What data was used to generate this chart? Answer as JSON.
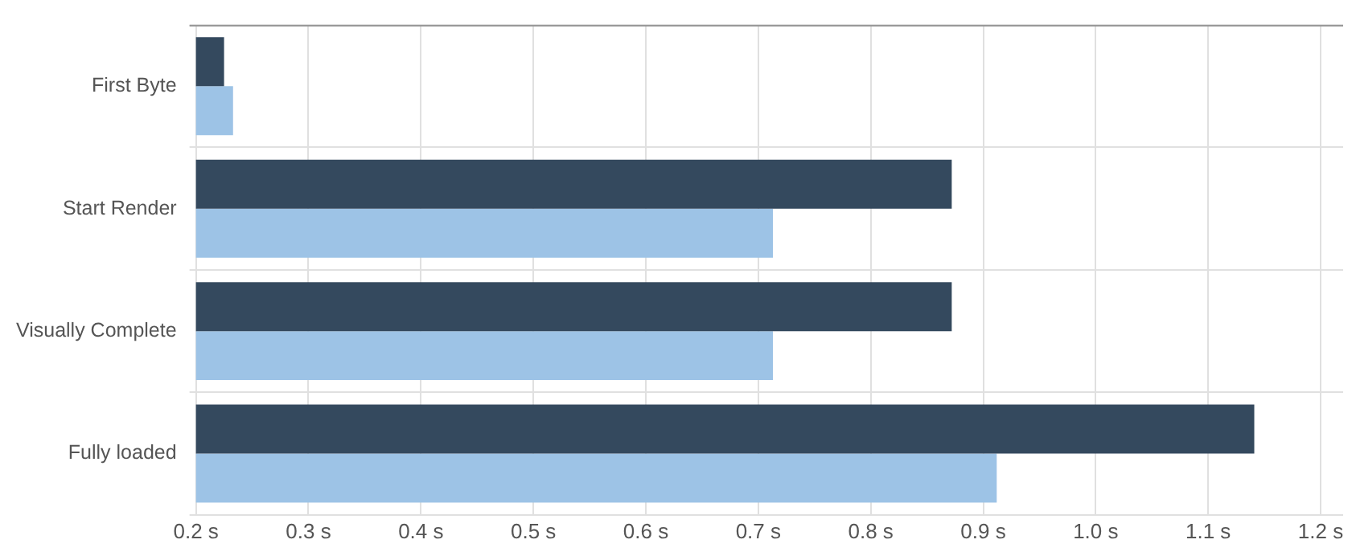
{
  "chart_data": {
    "type": "bar",
    "orientation": "horizontal",
    "categories": [
      "First Byte",
      "Start Render",
      "Visually Complete",
      "Fully loaded"
    ],
    "series": [
      {
        "color": "#34495e",
        "values": [
          0.225,
          0.872,
          0.872,
          1.141
        ]
      },
      {
        "color": "#9dc3e6",
        "values": [
          0.233,
          0.713,
          0.713,
          0.912
        ]
      }
    ],
    "xlim": [
      0.2,
      1.22
    ],
    "xticks": [
      {
        "value": 0.2,
        "label": "0.2 s"
      },
      {
        "value": 0.3,
        "label": "0.3 s"
      },
      {
        "value": 0.4,
        "label": "0.4 s"
      },
      {
        "value": 0.5,
        "label": "0.5 s"
      },
      {
        "value": 0.6,
        "label": "0.6 s"
      },
      {
        "value": 0.7,
        "label": "0.7 s"
      },
      {
        "value": 0.8,
        "label": "0.8 s"
      },
      {
        "value": 0.9,
        "label": "0.9 s"
      },
      {
        "value": 1.0,
        "label": "1.0 s"
      },
      {
        "value": 1.1,
        "label": "1.1 s"
      },
      {
        "value": 1.2,
        "label": "1.2 s"
      }
    ],
    "grid": true,
    "legend": false
  }
}
